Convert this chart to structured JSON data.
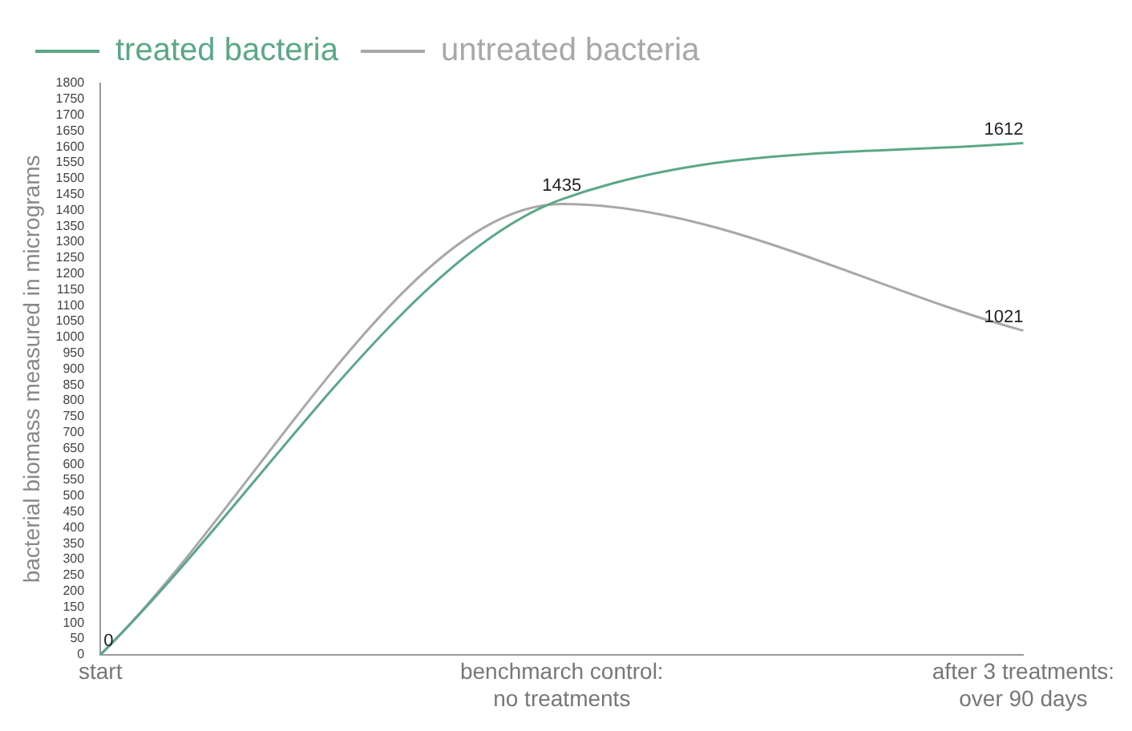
{
  "chart_data": {
    "type": "line",
    "ylabel": "bacterial biomass measured in micrograms",
    "categories": [
      "start",
      "benchmarch control: no treatments",
      "after 3 treatments: over 90 days"
    ],
    "series": [
      {
        "name": "treated bacteria",
        "color": "#5aa886",
        "values": [
          0,
          1435,
          1612
        ],
        "value_labels": [
          "0",
          "1435",
          "1612"
        ]
      },
      {
        "name": "untreated bacteria",
        "color": "#a8a8a8",
        "values": [
          0,
          1420,
          1021
        ],
        "value_labels": [
          null,
          null,
          "1021"
        ]
      }
    ],
    "ylim": [
      0,
      1800
    ],
    "yticks": [
      0,
      50,
      100,
      150,
      200,
      250,
      300,
      350,
      400,
      450,
      500,
      550,
      600,
      650,
      700,
      750,
      800,
      850,
      900,
      950,
      1000,
      1050,
      1100,
      1150,
      1200,
      1250,
      1300,
      1350,
      1400,
      1450,
      1500,
      1550,
      1600,
      1650,
      1700,
      1750,
      1800
    ],
    "grid": false,
    "legend": "top left",
    "marker": "none",
    "line_style": "solid"
  }
}
